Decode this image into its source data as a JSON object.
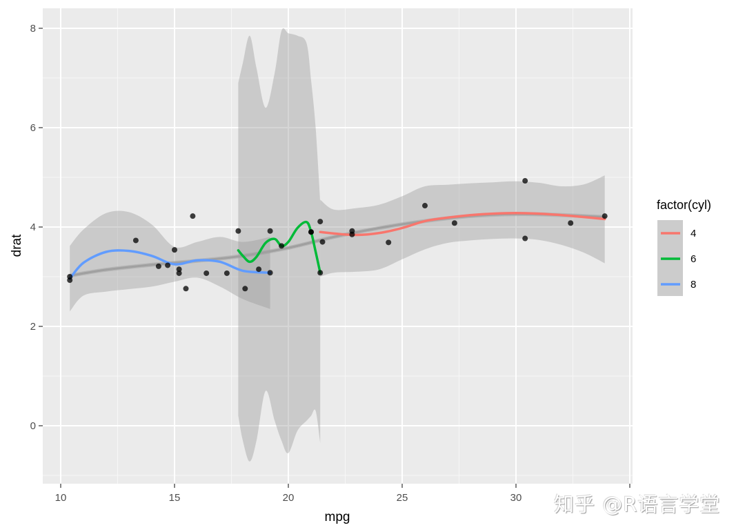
{
  "chart_data": {
    "type": "scatter",
    "title": "",
    "xlabel": "mpg",
    "ylabel": "drat",
    "xlim": [
      9.2,
      35.1
    ],
    "ylim": [
      -1.15,
      8.4
    ],
    "x_ticks": [
      10,
      15,
      20,
      25,
      30,
      35
    ],
    "x_tick_labels": [
      "10",
      "15",
      "20",
      "25",
      "30",
      ""
    ],
    "y_ticks": [
      0,
      2,
      4,
      6,
      8
    ],
    "y_tick_labels": [
      "0",
      "2",
      "4",
      "6",
      "8"
    ],
    "grid": true,
    "legend": {
      "title": "factor(cyl)",
      "position": "right",
      "entries": [
        {
          "label": "4",
          "color": "#F8766D"
        },
        {
          "label": "6",
          "color": "#00BA38"
        },
        {
          "label": "8",
          "color": "#619CFF"
        }
      ]
    },
    "points": [
      {
        "mpg": 21.0,
        "drat": 3.9
      },
      {
        "mpg": 21.0,
        "drat": 3.9
      },
      {
        "mpg": 22.8,
        "drat": 3.85
      },
      {
        "mpg": 21.4,
        "drat": 3.08
      },
      {
        "mpg": 18.7,
        "drat": 3.15
      },
      {
        "mpg": 18.1,
        "drat": 2.76
      },
      {
        "mpg": 14.3,
        "drat": 3.21
      },
      {
        "mpg": 24.4,
        "drat": 3.69
      },
      {
        "mpg": 22.8,
        "drat": 3.92
      },
      {
        "mpg": 19.2,
        "drat": 3.92
      },
      {
        "mpg": 17.8,
        "drat": 3.92
      },
      {
        "mpg": 16.4,
        "drat": 3.07
      },
      {
        "mpg": 17.3,
        "drat": 3.07
      },
      {
        "mpg": 15.2,
        "drat": 3.07
      },
      {
        "mpg": 10.4,
        "drat": 2.93
      },
      {
        "mpg": 10.4,
        "drat": 3.0
      },
      {
        "mpg": 14.7,
        "drat": 3.23
      },
      {
        "mpg": 32.4,
        "drat": 4.08
      },
      {
        "mpg": 30.4,
        "drat": 4.93
      },
      {
        "mpg": 33.9,
        "drat": 4.22
      },
      {
        "mpg": 21.5,
        "drat": 3.7
      },
      {
        "mpg": 15.5,
        "drat": 2.76
      },
      {
        "mpg": 15.2,
        "drat": 3.15
      },
      {
        "mpg": 13.3,
        "drat": 3.73
      },
      {
        "mpg": 19.2,
        "drat": 3.08
      },
      {
        "mpg": 27.3,
        "drat": 4.08
      },
      {
        "mpg": 26.0,
        "drat": 4.43
      },
      {
        "mpg": 30.4,
        "drat": 3.77
      },
      {
        "mpg": 15.8,
        "drat": 4.22
      },
      {
        "mpg": 19.7,
        "drat": 3.62
      },
      {
        "mpg": 15.0,
        "drat": 3.54
      },
      {
        "mpg": 21.4,
        "drat": 4.11
      }
    ],
    "series": [
      {
        "name": "overall smooth",
        "color": "#A0A0A0",
        "x": [
          10.4,
          12,
          14,
          16,
          18,
          20,
          22,
          24,
          26,
          28,
          30,
          32,
          33.9
        ],
        "y": [
          3.02,
          3.14,
          3.24,
          3.32,
          3.42,
          3.58,
          3.8,
          3.98,
          4.12,
          4.22,
          4.26,
          4.24,
          4.2
        ],
        "ribbon_lo": [
          2.98,
          3.1,
          3.2,
          3.28,
          3.38,
          3.54,
          3.76,
          3.94,
          4.08,
          4.18,
          4.22,
          4.2,
          4.16
        ],
        "ribbon_hi": [
          3.06,
          3.18,
          3.28,
          3.36,
          3.46,
          3.62,
          3.84,
          4.02,
          4.16,
          4.26,
          4.3,
          4.28,
          4.24
        ]
      },
      {
        "name": "4",
        "color": "#F8766D",
        "x": [
          21.4,
          22,
          23,
          24,
          25,
          26,
          27,
          28,
          29,
          30,
          31,
          32,
          33,
          33.9
        ],
        "y": [
          3.9,
          3.87,
          3.84,
          3.88,
          3.98,
          4.12,
          4.19,
          4.24,
          4.27,
          4.28,
          4.27,
          4.24,
          4.2,
          4.16
        ],
        "ribbon_lo": [
          3.0,
          3.08,
          3.1,
          3.15,
          3.35,
          3.55,
          3.68,
          3.73,
          3.76,
          3.77,
          3.74,
          3.64,
          3.48,
          3.27
        ],
        "ribbon_hi": [
          4.55,
          4.35,
          4.38,
          4.45,
          4.62,
          4.82,
          4.85,
          4.88,
          4.9,
          4.92,
          4.89,
          4.82,
          4.86,
          5.04
        ]
      },
      {
        "name": "6",
        "color": "#00BA38",
        "x": [
          17.8,
          18.0,
          18.3,
          18.6,
          19.0,
          19.4,
          19.7,
          20.0,
          20.4,
          20.8,
          21.0,
          21.2,
          21.4
        ],
        "y": [
          3.53,
          3.42,
          3.3,
          3.4,
          3.68,
          3.76,
          3.62,
          3.7,
          3.98,
          4.1,
          3.9,
          3.5,
          3.08
        ],
        "ribbon_lo": [
          0.2,
          -0.3,
          -0.72,
          -0.3,
          0.7,
          0.1,
          -0.3,
          -0.55,
          -0.1,
          0.1,
          0.2,
          0.3,
          -0.35
        ],
        "ribbon_hi": [
          6.9,
          7.3,
          7.85,
          7.2,
          6.4,
          7.1,
          7.95,
          7.9,
          7.85,
          7.7,
          6.95,
          6.0,
          4.5
        ]
      },
      {
        "name": "8",
        "color": "#619CFF",
        "x": [
          10.4,
          11,
          12,
          13,
          14,
          15,
          16,
          17,
          18,
          19.2
        ],
        "y": [
          2.96,
          3.28,
          3.5,
          3.52,
          3.42,
          3.25,
          3.33,
          3.3,
          3.12,
          3.08
        ],
        "ribbon_lo": [
          2.3,
          2.62,
          2.7,
          2.75,
          2.8,
          2.9,
          2.98,
          2.8,
          2.55,
          2.35
        ],
        "ribbon_hi": [
          3.62,
          3.95,
          4.28,
          4.3,
          4.05,
          3.6,
          3.7,
          3.8,
          3.7,
          3.8
        ]
      }
    ]
  },
  "watermark": {
    "text": "知乎 @R语言学堂"
  }
}
